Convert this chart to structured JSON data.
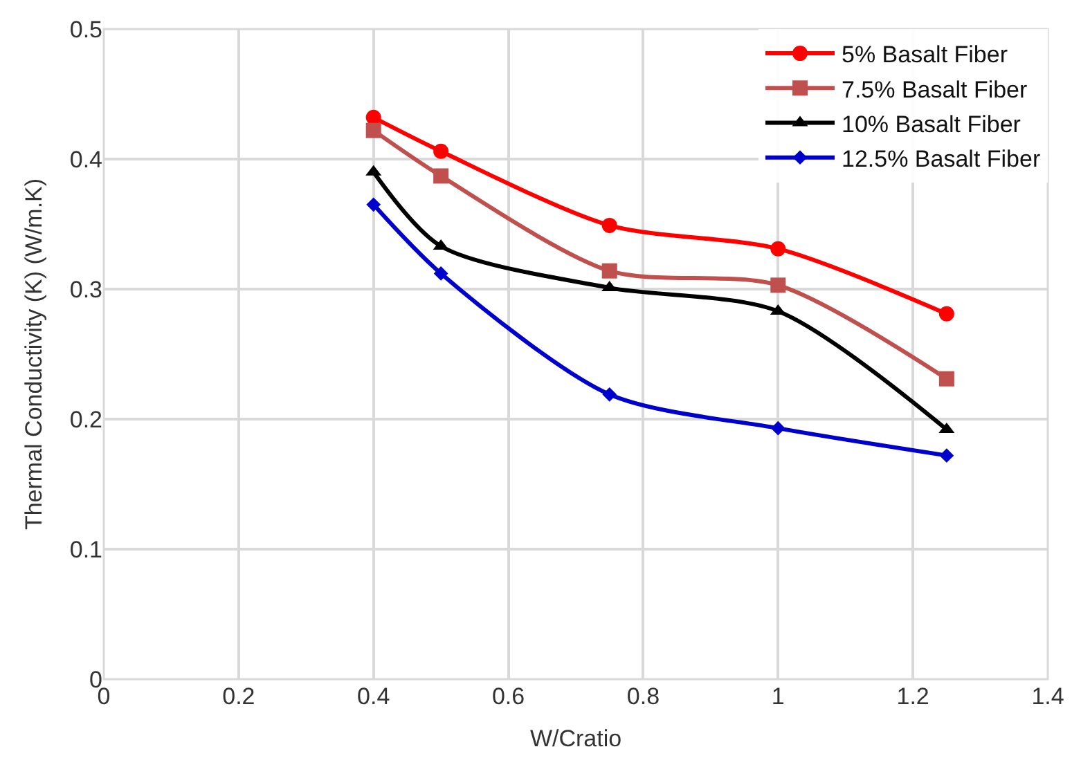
{
  "chart_data": {
    "type": "line",
    "xlabel": "W/Cratio",
    "ylabel": "Thermal Conductivity (K) (W/m.K)",
    "x": [
      0.4,
      0.5,
      0.75,
      1.0,
      1.25
    ],
    "series": [
      {
        "name": "5% Basalt Fiber",
        "color": "#ff0000",
        "marker": "circle",
        "values": [
          0.432,
          0.406,
          0.349,
          0.331,
          0.281
        ]
      },
      {
        "name": "7.5% Basalt Fiber",
        "color": "#c0504d",
        "marker": "square",
        "values": [
          0.422,
          0.387,
          0.314,
          0.303,
          0.231
        ]
      },
      {
        "name": "10% Basalt Fiber",
        "color": "#000000",
        "marker": "triangle",
        "values": [
          0.39,
          0.333,
          0.301,
          0.283,
          0.192
        ]
      },
      {
        "name": "12.5% Basalt Fiber",
        "color": "#0000cc",
        "marker": "diamond",
        "values": [
          0.365,
          0.312,
          0.219,
          0.193,
          0.172
        ]
      }
    ],
    "xlim": [
      0,
      1.4
    ],
    "xticks": [
      0,
      0.2,
      0.4,
      0.6,
      0.8,
      1,
      1.2,
      1.4
    ],
    "ylim": [
      0,
      0.5
    ],
    "yticks": [
      0,
      0.1,
      0.2,
      0.3,
      0.4,
      0.5
    ],
    "grid": true,
    "legend": "top right",
    "line_style": "solid"
  }
}
